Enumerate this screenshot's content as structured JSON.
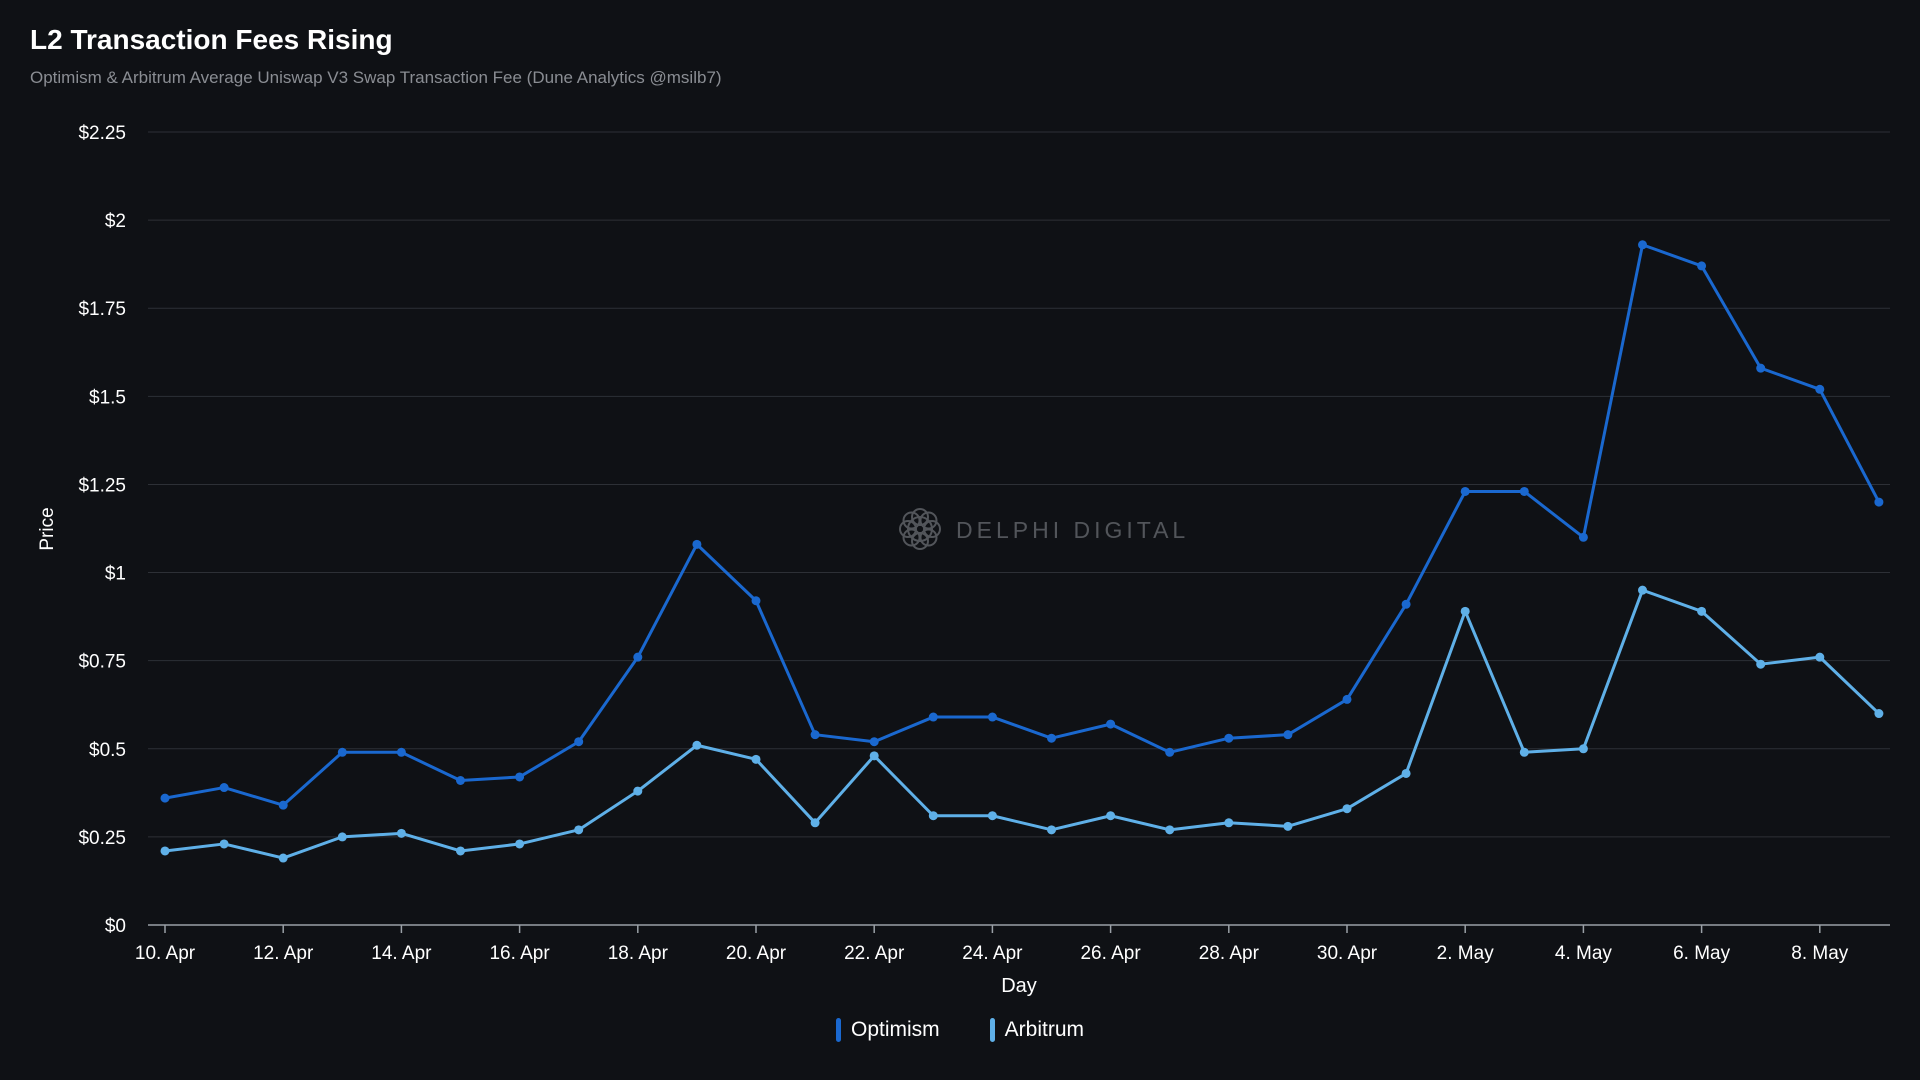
{
  "header": {
    "title": "L2 Transaction Fees Rising",
    "subtitle": "Optimism & Arbitrum Average Uniswap V3 Swap Transaction Fee (Dune Analytics @msilb7)"
  },
  "watermark": {
    "text": "DELPHI DIGITAL"
  },
  "colors": {
    "optimism": "#1a68cf",
    "arbitrum": "#5fb0e8",
    "grid": "#2d3036",
    "text": "#ffffff"
  },
  "chart_data": {
    "type": "line",
    "title": "L2 Transaction Fees Rising",
    "xlabel": "Day",
    "ylabel": "Price",
    "ylim": [
      0,
      2.25
    ],
    "yticks": [
      {
        "value": 0,
        "label": "$0"
      },
      {
        "value": 0.25,
        "label": "$0.25"
      },
      {
        "value": 0.5,
        "label": "$0.5"
      },
      {
        "value": 0.75,
        "label": "$0.75"
      },
      {
        "value": 1,
        "label": "$1"
      },
      {
        "value": 1.25,
        "label": "$1.25"
      },
      {
        "value": 1.5,
        "label": "$1.5"
      },
      {
        "value": 1.75,
        "label": "$1.75"
      },
      {
        "value": 2,
        "label": "$2"
      },
      {
        "value": 2.25,
        "label": "$2.25"
      }
    ],
    "x": [
      "10 Apr",
      "11 Apr",
      "12 Apr",
      "13 Apr",
      "14 Apr",
      "15 Apr",
      "16 Apr",
      "17 Apr",
      "18 Apr",
      "19 Apr",
      "20 Apr",
      "21 Apr",
      "22 Apr",
      "23 Apr",
      "24 Apr",
      "25 Apr",
      "26 Apr",
      "27 Apr",
      "28 Apr",
      "29 Apr",
      "30 Apr",
      "1 May",
      "2 May",
      "3 May",
      "4 May",
      "5 May",
      "6 May",
      "7 May",
      "8 May",
      "9 May"
    ],
    "xticks": [
      {
        "index": 0,
        "label": "10. Apr"
      },
      {
        "index": 2,
        "label": "12. Apr"
      },
      {
        "index": 4,
        "label": "14. Apr"
      },
      {
        "index": 6,
        "label": "16. Apr"
      },
      {
        "index": 8,
        "label": "18. Apr"
      },
      {
        "index": 10,
        "label": "20. Apr"
      },
      {
        "index": 12,
        "label": "22. Apr"
      },
      {
        "index": 14,
        "label": "24. Apr"
      },
      {
        "index": 16,
        "label": "26. Apr"
      },
      {
        "index": 18,
        "label": "28. Apr"
      },
      {
        "index": 20,
        "label": "30. Apr"
      },
      {
        "index": 22,
        "label": "2. May"
      },
      {
        "index": 24,
        "label": "4. May"
      },
      {
        "index": 26,
        "label": "6. May"
      },
      {
        "index": 28,
        "label": "8. May"
      }
    ],
    "series": [
      {
        "name": "Optimism",
        "color": "#1a68cf",
        "values": [
          0.36,
          0.39,
          0.34,
          0.49,
          0.49,
          0.41,
          0.42,
          0.52,
          0.76,
          1.08,
          0.92,
          0.54,
          0.52,
          0.59,
          0.59,
          0.53,
          0.57,
          0.49,
          0.53,
          0.54,
          0.64,
          0.91,
          1.23,
          1.23,
          1.1,
          1.93,
          1.87,
          1.58,
          1.52,
          1.2
        ]
      },
      {
        "name": "Arbitrum",
        "color": "#5fb0e8",
        "values": [
          0.21,
          0.23,
          0.19,
          0.25,
          0.26,
          0.21,
          0.23,
          0.27,
          0.38,
          0.51,
          0.47,
          0.29,
          0.48,
          0.31,
          0.31,
          0.27,
          0.31,
          0.27,
          0.29,
          0.28,
          0.33,
          0.43,
          0.89,
          0.49,
          0.5,
          0.95,
          0.89,
          0.74,
          0.76,
          0.6
        ]
      }
    ],
    "legend": "bottom-center"
  }
}
